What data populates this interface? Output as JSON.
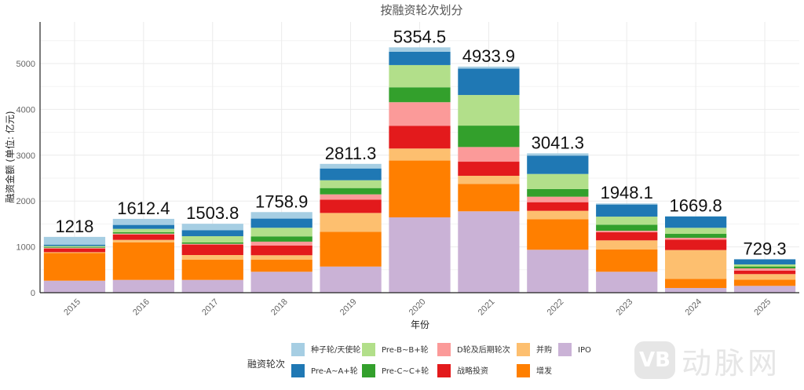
{
  "chart_data": {
    "type": "bar",
    "stacked": true,
    "title": "按融资轮次划分",
    "xlabel": "年份",
    "ylabel": "融资金额 (单位: 亿元)",
    "ylim": [
      0,
      5900
    ],
    "yticks": [
      0,
      1000,
      2000,
      3000,
      4000,
      5000
    ],
    "grid": true,
    "legend_title": "融资轮次",
    "legend_position": "bottom",
    "categories": [
      "2015",
      "2016",
      "2017",
      "2018",
      "2019",
      "2020",
      "2021",
      "2022",
      "2023",
      "2024",
      "2025"
    ],
    "totals": [
      "1218",
      "1612.4",
      "1503.8",
      "1758.9",
      "2811.3",
      "5354.5",
      "4933.9",
      "3041.3",
      "1948.1",
      "1669.8",
      "729.3"
    ],
    "series": [
      {
        "name": "IPO",
        "color": "#cab2d6",
        "values": [
          262,
          279,
          279,
          457,
          570,
          1644,
          1776,
          937,
          457,
          103,
          149
        ]
      },
      {
        "name": "增发",
        "color": "#ff7f00",
        "values": [
          605,
          817,
          440,
          262,
          759,
          1240,
          599,
          668,
          485,
          200,
          137
        ]
      },
      {
        "name": "并购",
        "color": "#fdbf6f",
        "values": [
          17,
          57,
          103,
          98,
          411,
          262,
          176,
          182,
          200,
          628,
          120
        ]
      },
      {
        "name": "战略投资",
        "color": "#e31a1c",
        "values": [
          80,
          115,
          228,
          211,
          291,
          497,
          308,
          188,
          176,
          228,
          74
        ]
      },
      {
        "name": "D轮及后期轮次",
        "color": "#fb9a99",
        "values": [
          17,
          22,
          17,
          86,
          115,
          514,
          320,
          120,
          34,
          39,
          51
        ]
      },
      {
        "name": "Pre-C~C+轮",
        "color": "#33a02c",
        "values": [
          17,
          29,
          29,
          115,
          137,
          325,
          467,
          166,
          132,
          86,
          41
        ]
      },
      {
        "name": "Pre-B~B+轮",
        "color": "#b2df8a",
        "values": [
          22,
          74,
          137,
          188,
          171,
          485,
          668,
          330,
          176,
          132,
          45
        ]
      },
      {
        "name": "Pre-A~A+轮",
        "color": "#1f78b4",
        "values": [
          29,
          86,
          132,
          200,
          257,
          291,
          577,
          401,
          264,
          245,
          112
        ]
      },
      {
        "name": "种子轮/天使轮",
        "color": "#a6cee3",
        "values": [
          169,
          132,
          139,
          142,
          100,
          96,
          43,
          49,
          24,
          9,
          0
        ]
      }
    ],
    "legend_order": [
      {
        "name": "种子轮/天使轮",
        "color": "#a6cee3"
      },
      {
        "name": "Pre-A~A+轮",
        "color": "#1f78b4"
      },
      {
        "name": "Pre-B~B+轮",
        "color": "#b2df8a"
      },
      {
        "name": "Pre-C~C+轮",
        "color": "#33a02c"
      },
      {
        "name": "D轮及后期轮次",
        "color": "#fb9a99"
      },
      {
        "name": "战略投资",
        "color": "#e31a1c"
      },
      {
        "name": "并购",
        "color": "#fdbf6f"
      },
      {
        "name": "增发",
        "color": "#ff7f00"
      },
      {
        "name": "IPO",
        "color": "#cab2d6"
      }
    ]
  },
  "watermark": {
    "logo": "VB",
    "text": "动脉网"
  }
}
